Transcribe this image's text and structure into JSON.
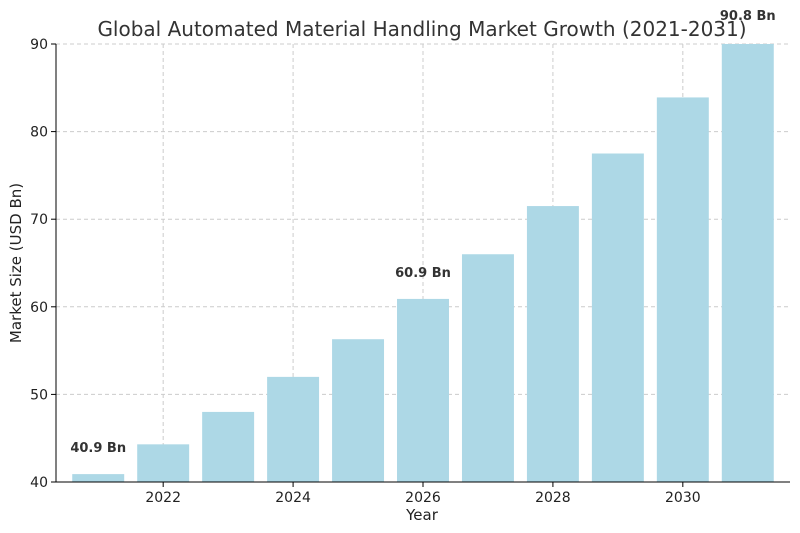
{
  "chart_data": {
    "type": "bar",
    "title": "Global Automated Material Handling Market Growth (2021-2031)",
    "xlabel": "Year",
    "ylabel": "Market Size (USD Bn)",
    "categories": [
      2021,
      2022,
      2023,
      2024,
      2025,
      2026,
      2027,
      2028,
      2029,
      2030,
      2031
    ],
    "values": [
      40.9,
      44.3,
      48.0,
      52.0,
      56.3,
      60.9,
      66.0,
      71.5,
      77.5,
      83.9,
      90.8
    ],
    "xticks": [
      2022,
      2024,
      2026,
      2028,
      2030
    ],
    "xtick_labels": [
      "2022",
      "2024",
      "2026",
      "2028",
      "2030"
    ],
    "yticks": [
      40,
      50,
      60,
      70,
      80,
      90
    ],
    "ytick_labels": [
      "40",
      "50",
      "60",
      "70",
      "80",
      "90"
    ],
    "ylim": [
      40,
      90
    ],
    "grid": true,
    "bar_color": "#add8e6",
    "annotations": [
      {
        "x": 2021,
        "value": 40.9,
        "text": "40.9 Bn"
      },
      {
        "x": 2026,
        "value": 60.9,
        "text": "60.9 Bn"
      },
      {
        "x": 2031,
        "value": 90.8,
        "text": "90.8 Bn"
      }
    ]
  }
}
